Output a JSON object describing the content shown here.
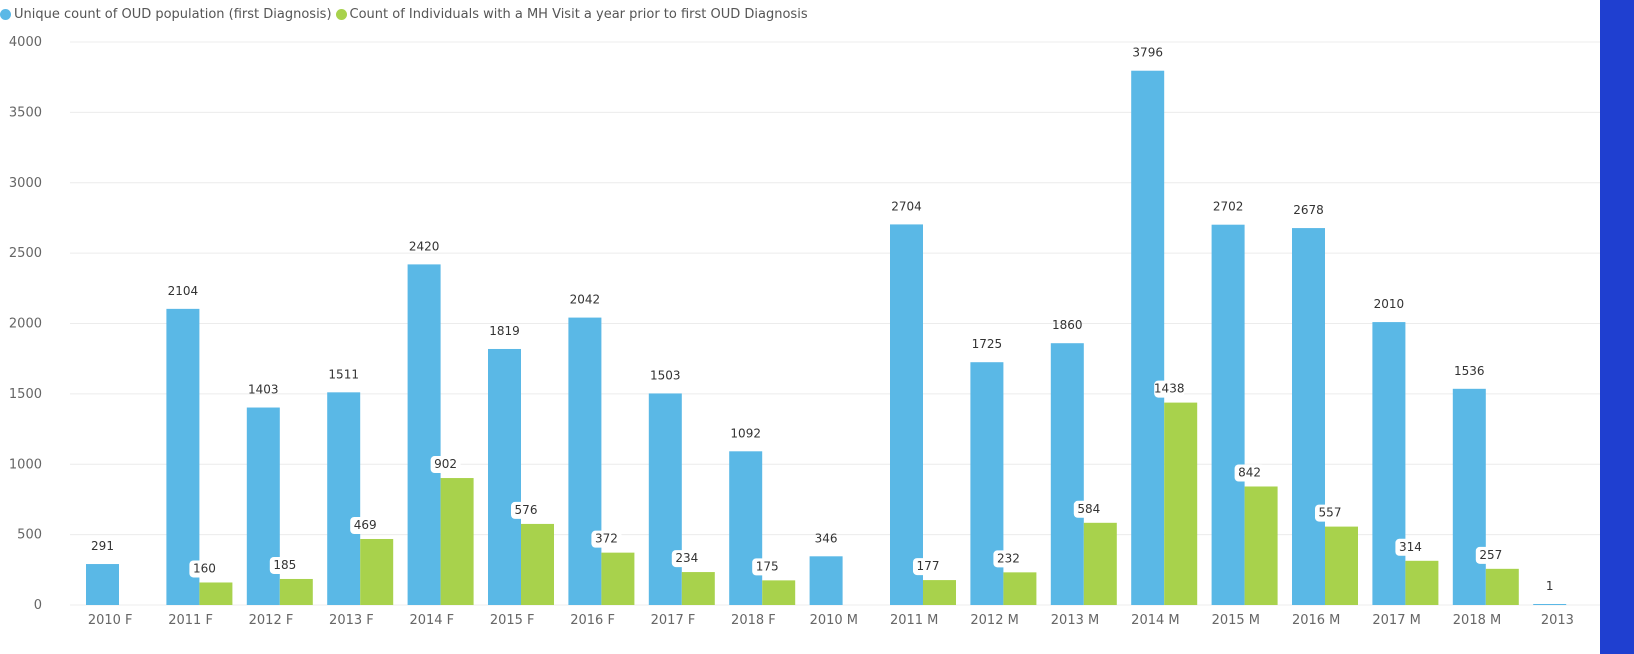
{
  "chart_data": {
    "type": "bar",
    "categories": [
      "2010 F",
      "2011 F",
      "2012 F",
      "2013 F",
      "2014 F",
      "2015 F",
      "2016 F",
      "2017 F",
      "2018 F",
      "2010 M",
      "2011 M",
      "2012 M",
      "2013 M",
      "2014 M",
      "2015 M",
      "2016 M",
      "2017 M",
      "2018 M",
      "2013"
    ],
    "series": [
      {
        "name": "Unique count of OUD population (first Diagnosis)",
        "color": "#5ab8e6",
        "values": [
          291,
          2104,
          1403,
          1511,
          2420,
          1819,
          2042,
          1503,
          1092,
          346,
          2704,
          1725,
          1860,
          3796,
          2702,
          2678,
          2010,
          1536,
          1
        ]
      },
      {
        "name": "Count of Individuals with a MH Visit a year prior to first OUD Diagnosis",
        "color": "#a8d24c",
        "values": [
          null,
          160,
          185,
          469,
          902,
          576,
          372,
          234,
          175,
          null,
          177,
          232,
          584,
          1438,
          842,
          557,
          314,
          257,
          null
        ]
      }
    ],
    "yticks": [
      0,
      500,
      1000,
      1500,
      2000,
      2500,
      3000,
      3500,
      4000
    ],
    "ylim": [
      0,
      4000
    ],
    "grid": true,
    "legend_position": "top-left"
  }
}
